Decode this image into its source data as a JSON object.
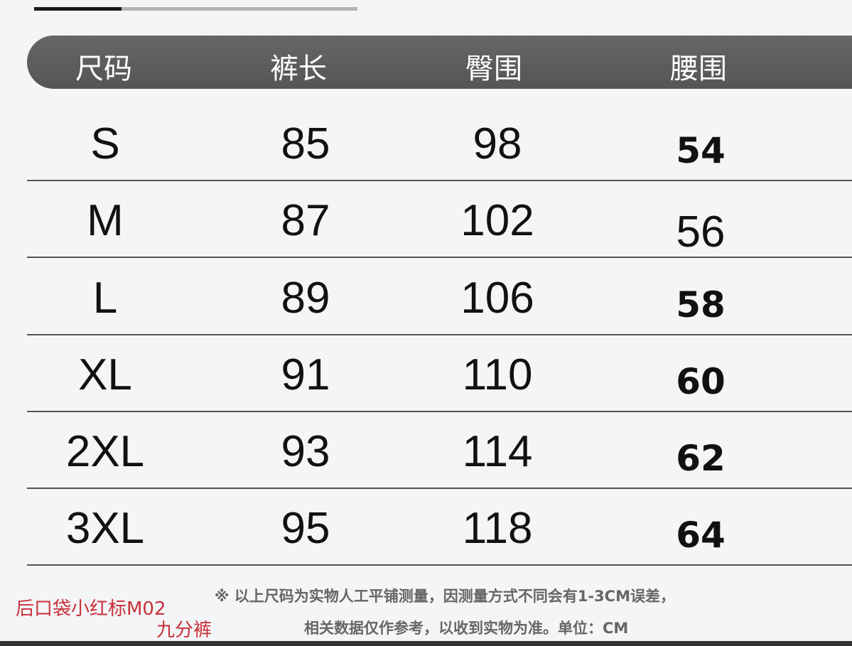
{
  "progress": {
    "fraction": 0.27
  },
  "header": [
    "尺码",
    "裤长",
    "臀围",
    "腰围"
  ],
  "rows": [
    {
      "size": "S",
      "length": "85",
      "hip": "98",
      "waist": "54",
      "waist_bold": true
    },
    {
      "size": "M",
      "length": "87",
      "hip": "102",
      "waist": "56",
      "waist_bold": false
    },
    {
      "size": "L",
      "length": "89",
      "hip": "106",
      "waist": "58",
      "waist_bold": true
    },
    {
      "size": "XL",
      "length": "91",
      "hip": "110",
      "waist": "60",
      "waist_bold": true
    },
    {
      "size": "2XL",
      "length": "93",
      "hip": "114",
      "waist": "62",
      "waist_bold": true
    },
    {
      "size": "3XL",
      "length": "95",
      "hip": "118",
      "waist": "64",
      "waist_bold": true
    }
  ],
  "notes": {
    "line1": "※ 以上尺码为实物人工平铺测量，因测量方式不同会有1-3CM误差，",
    "line2": "相关数据仅作参考，以收到实物为准。单位：CM"
  },
  "overlay": {
    "line1": "后口袋小红标M02",
    "line2": "九分裤",
    "color": "#c8303a"
  }
}
